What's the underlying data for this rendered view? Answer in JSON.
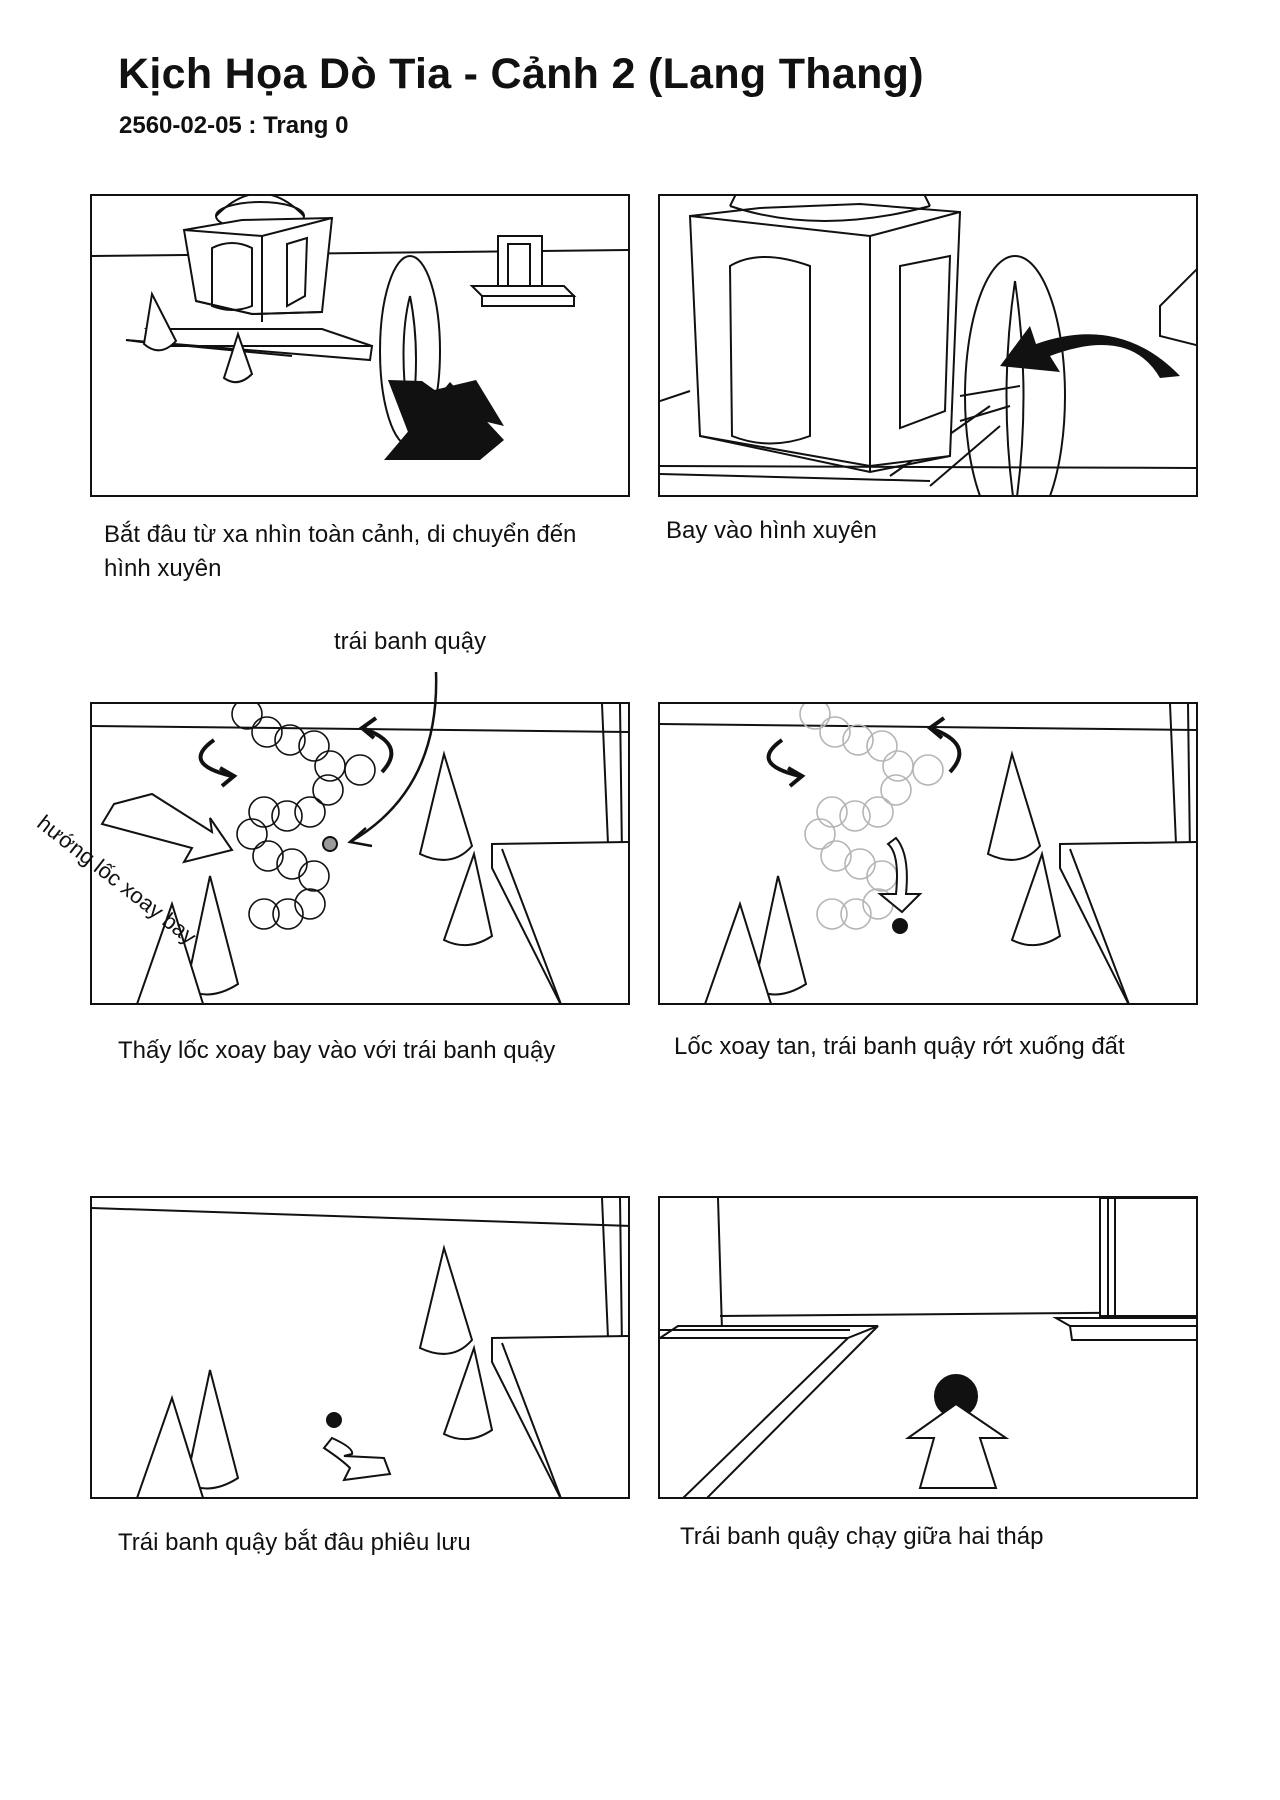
{
  "header": {
    "title": "Kịch Họa Dò Tia - Cảnh 2 (Lang Thang)",
    "subtitle": "2560-02-05 : Trang 0"
  },
  "panels": [
    {
      "caption": "Bắt đâu từ xa nhìn toàn cảnh, di chuyển đến hình xuyên"
    },
    {
      "caption": "Bay vào hình xuyên"
    },
    {
      "caption": "Thấy lốc xoay bay vào với trái banh quậy"
    },
    {
      "caption": "Lốc xoay tan, trái banh quậy rớt xuống đất"
    },
    {
      "caption": "Trái banh quậy bắt đâu phiêu lưu"
    },
    {
      "caption": "Trái banh quậy chạy giữa hai tháp"
    }
  ],
  "annotations": {
    "ball_label": "trái banh quậy",
    "wind_direction": "hướng lốc xoay bay"
  },
  "colors": {
    "ink": "#111111",
    "paper": "#ffffff",
    "faded_ink": "#b5b5b5",
    "ball_highlight": "#9a9a9a"
  },
  "icons": [
    "camera-move-arrow-icon",
    "curved-arrow-icon",
    "swirl-arrow-icon",
    "down-arrow-icon",
    "ball-icon"
  ]
}
